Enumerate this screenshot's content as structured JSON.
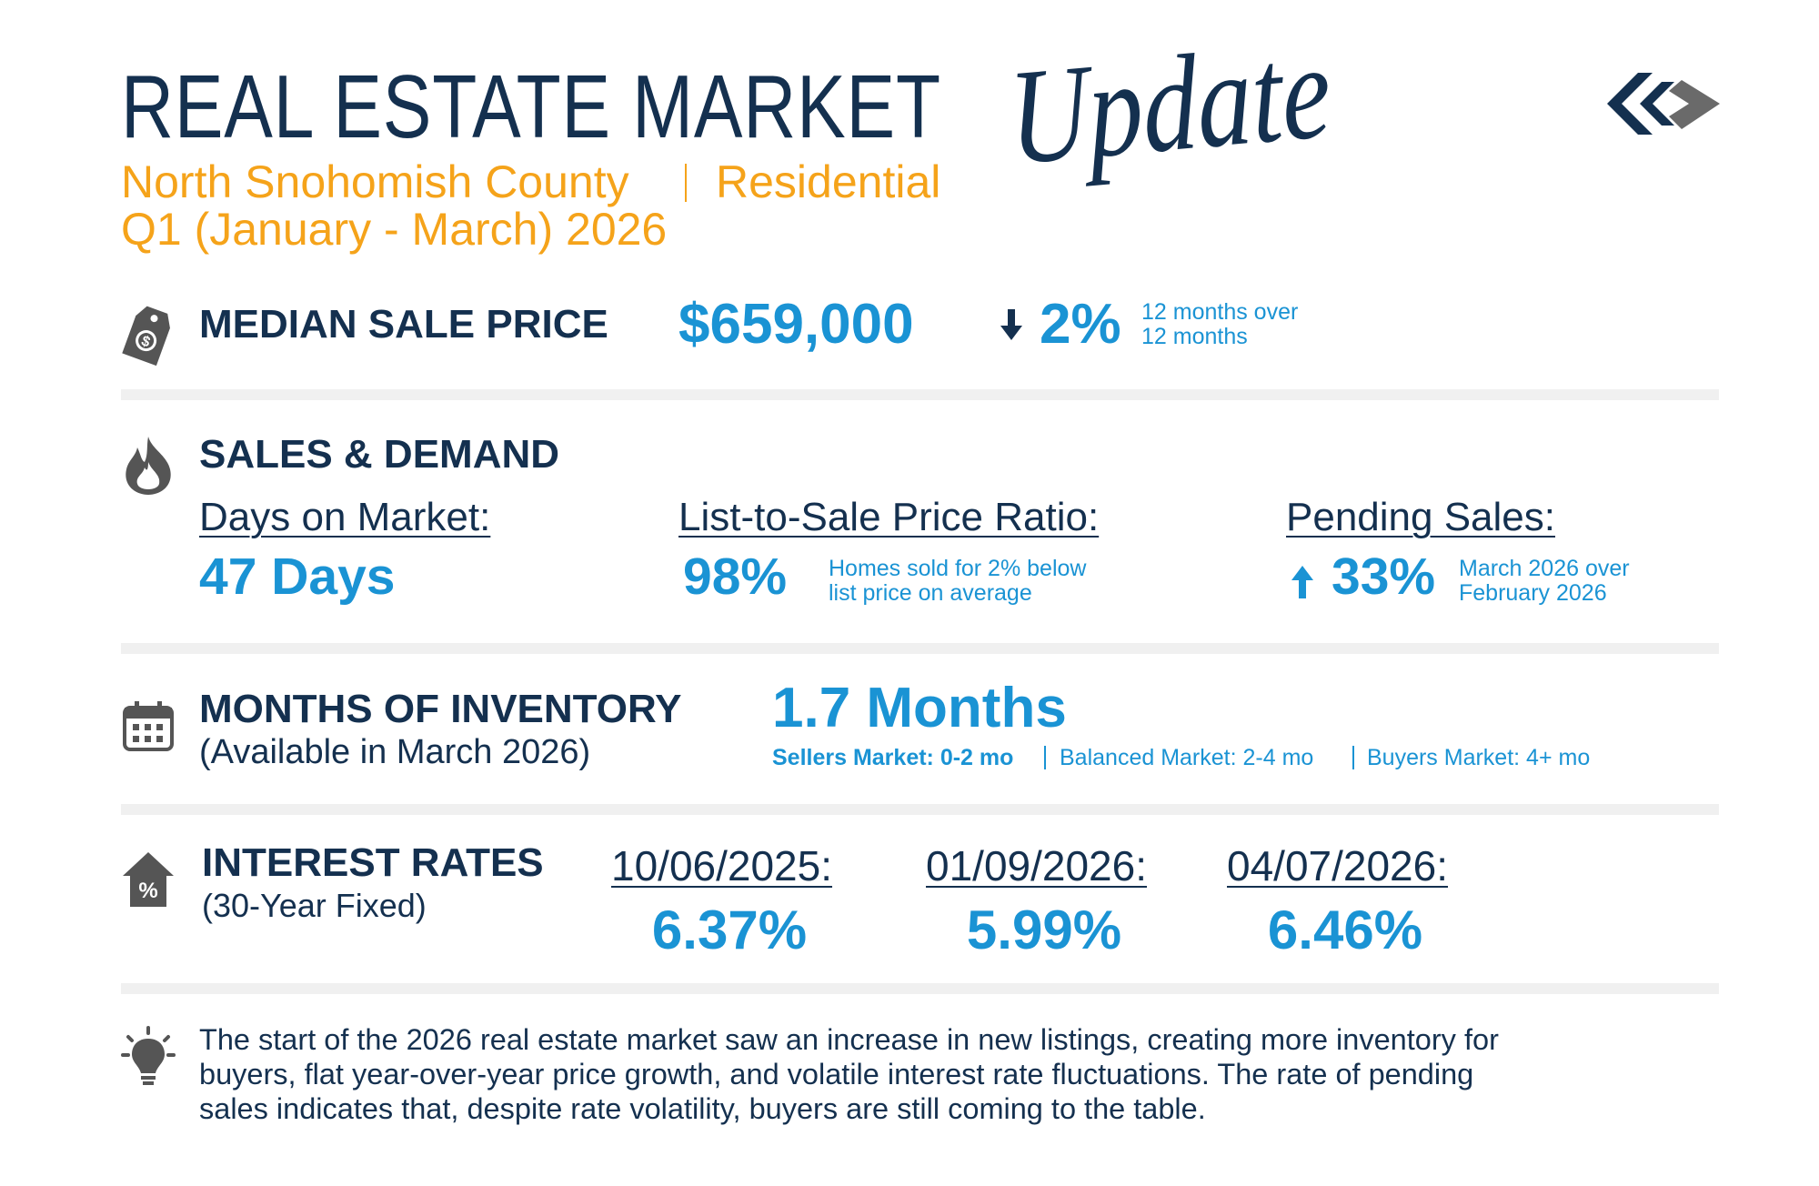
{
  "header": {
    "title": "REAL ESTATE MARKET",
    "script": "Update",
    "subtitle": [
      "North Snohomish County",
      "Residential"
    ],
    "period": "Q1 (January - March) 2026"
  },
  "median_sale_price": {
    "heading": "MEDIAN SALE PRICE",
    "value": "$659,000",
    "change": "2%",
    "change_note": [
      "12 months over",
      "12 months"
    ]
  },
  "sales_demand": {
    "heading": "SALES & DEMAND",
    "metrics": [
      {
        "label": "Days on Market:",
        "value": "47 Days"
      },
      {
        "label": "List-to-Sale Price Ratio:",
        "value": "98%",
        "note": [
          "Homes sold for 2% below",
          "list price on average"
        ]
      },
      {
        "label": "Pending Sales:",
        "value": "33%",
        "note": [
          "March 2026 over",
          "February 2026"
        ]
      }
    ]
  },
  "inventory": {
    "heading": "MONTHS OF INVENTORY",
    "subheading": "(Available in March 2026)",
    "value": "1.7 Months",
    "scale": [
      "Sellers Market: 0-2 mo",
      "Balanced Market: 2-4 mo",
      "Buyers Market: 4+ mo"
    ]
  },
  "interest_rates": {
    "heading": "INTEREST RATES",
    "subheading": "(30-Year Fixed)",
    "rates": [
      {
        "date": "10/06/2025:",
        "value": "6.37%"
      },
      {
        "date": "01/09/2026:",
        "value": "5.99%"
      },
      {
        "date": "04/07/2026:",
        "value": "6.46%"
      }
    ]
  },
  "summary": [
    "The start of the 2026 real estate market saw an increase in new listings, creating more inventory for",
    "buyers, flat year-over-year price growth, and volatile interest rate fluctuations. The rate of pending",
    "sales indicates that, despite rate volatility, buyers are still coming to the table."
  ]
}
